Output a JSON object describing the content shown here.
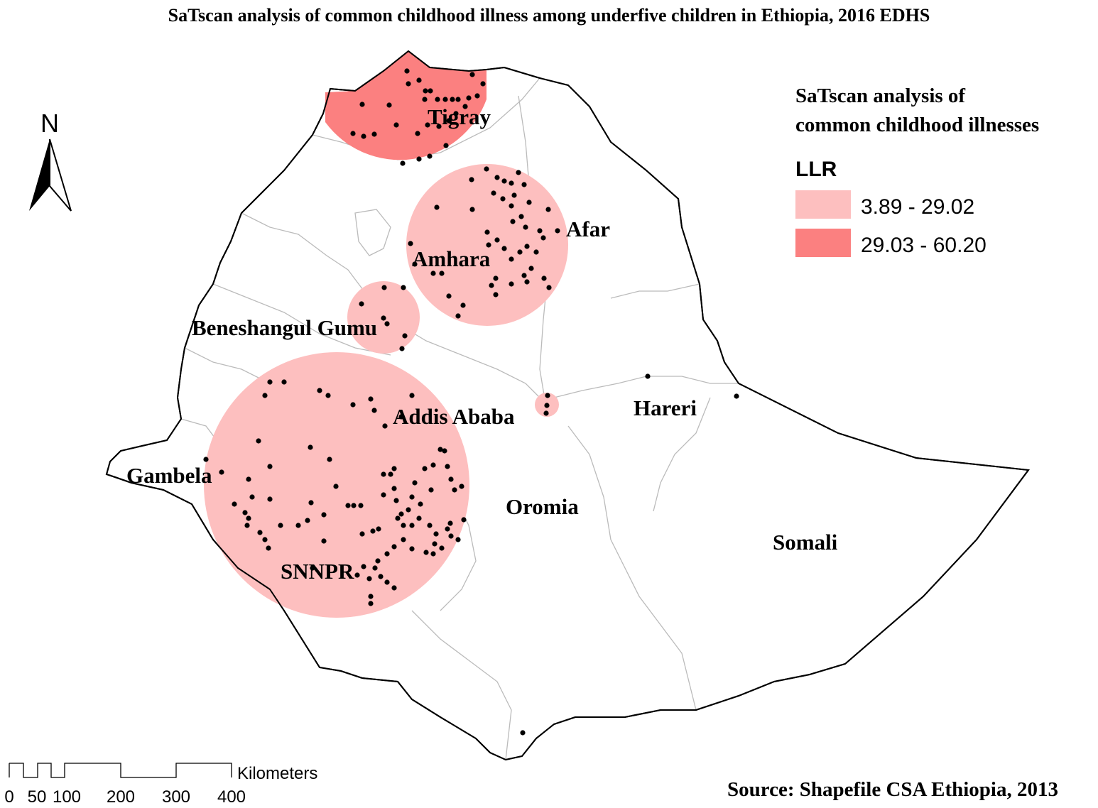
{
  "title": "SaTscan analysis  of common childhood illness among underfive children in Ethiopia, 2016 EDHS",
  "north_arrow": {
    "label": "N",
    "icon": "north-arrow-icon"
  },
  "legend": {
    "heading_line1": "SaTscan analysis of",
    "heading_line2": "common childhood illnesses",
    "field": "LLR",
    "classes": [
      {
        "label": "3.89 - 29.02",
        "color": "#fdbfbf"
      },
      {
        "label": "29.03 - 60.20",
        "color": "#fb8080"
      }
    ]
  },
  "regions": {
    "tigray": "Tigray",
    "afar": "Afar",
    "amhara": "Amhara",
    "beneshangul": "Beneshangul Gumu",
    "addis": "Addis Ababa",
    "hareri": "Hareri",
    "gambela": "Gambela",
    "oromia": "Oromia",
    "snnpr": "SNNPR",
    "somali": "Somali"
  },
  "scale_bar": {
    "unit": "Kilometers",
    "ticks": [
      "0",
      "50",
      "100",
      "200",
      "300",
      "400"
    ]
  },
  "source": "Source: Shapefile CSA Ethiopia, 2013",
  "colors": {
    "cluster_low": "#fdbfbf",
    "cluster_high": "#fb8080",
    "boundary": "#000000",
    "internal_boundary": "#bbbbbb",
    "point": "#000000"
  }
}
